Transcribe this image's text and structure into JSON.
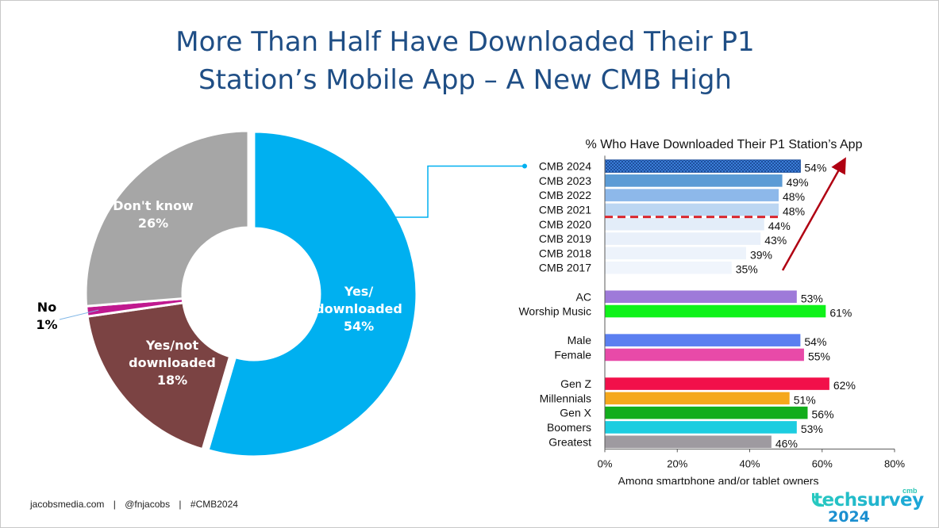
{
  "title_lines": [
    "More Than Half Have Downloaded Their P1",
    "Station’s Mobile App – A New CMB High"
  ],
  "footer": {
    "site": "jacobsmedia.com",
    "handle": "@fnjacobs",
    "hashtag": "#CMB2024",
    "separator": "|"
  },
  "brand": {
    "superscript": "cmb",
    "name": "techsurvey",
    "year": "2024"
  },
  "chart_data": [
    {
      "type": "pie",
      "variant": "donut",
      "slices": [
        {
          "label_lines": [
            "Yes/",
            "downloaded",
            "54%"
          ],
          "value": 54,
          "color": "#00b0f0",
          "label_color": "#ffffff"
        },
        {
          "label_lines": [
            "Yes/not",
            "downloaded",
            "18%"
          ],
          "value": 18,
          "color": "#7b4343",
          "label_color": "#ffffff"
        },
        {
          "label_lines": [
            "No",
            "1%"
          ],
          "value": 1,
          "color": "#c0198f",
          "label_color": "#000000"
        },
        {
          "label_lines": [
            "Don't know",
            "26%"
          ],
          "value": 26,
          "color": "#a6a6a6",
          "label_color": "#ffffff"
        }
      ]
    },
    {
      "type": "bar",
      "orientation": "horizontal",
      "title": "% Who Have Downloaded Their P1 Station’s App",
      "xlabel": "Among smartphone and/or tablet owners",
      "xlim": [
        0,
        80
      ],
      "xticks": [
        "0%",
        "20%",
        "40%",
        "60%",
        "80%"
      ],
      "groups": [
        {
          "bars": [
            {
              "label": "CMB 2024",
              "value": 54,
              "text": "54%",
              "color": "#2e6db4",
              "pattern": "checker"
            },
            {
              "label": "CMB 2023",
              "value": 49,
              "text": "49%",
              "color": "#5b9bd5"
            },
            {
              "label": "CMB 2022",
              "value": 48,
              "text": "48%",
              "color": "#8db8ea"
            },
            {
              "label": "CMB 2021",
              "value": 48,
              "text": "48%",
              "color": "#bcd6f2"
            },
            {
              "label": "CMB 2020",
              "value": 44,
              "text": "44%",
              "color": "#e3edf9"
            },
            {
              "label": "CMB 2019",
              "value": 43,
              "text": "43%",
              "color": "#e9f0fa"
            },
            {
              "label": "CMB 2018",
              "value": 39,
              "text": "39%",
              "color": "#edf3fb"
            },
            {
              "label": "CMB 2017",
              "value": 35,
              "text": "35%",
              "color": "#f0f5fc"
            }
          ]
        },
        {
          "bars": [
            {
              "label": "AC",
              "value": 53,
              "text": "53%",
              "color": "#9e7ad9"
            },
            {
              "label": "Worship Music",
              "value": 61,
              "text": "61%",
              "color": "#0ff21a"
            }
          ]
        },
        {
          "bars": [
            {
              "label": "Male",
              "value": 54,
              "text": "54%",
              "color": "#5b7ff0"
            },
            {
              "label": "Female",
              "value": 55,
              "text": "55%",
              "color": "#e84aa8"
            }
          ]
        },
        {
          "bars": [
            {
              "label": "Gen Z",
              "value": 62,
              "text": "62%",
              "color": "#f2104a"
            },
            {
              "label": "Millennials",
              "value": 51,
              "text": "51%",
              "color": "#f5a81c"
            },
            {
              "label": "Gen X",
              "value": 56,
              "text": "56%",
              "color": "#12ad1c"
            },
            {
              "label": "Boomers",
              "value": 53,
              "text": "53%",
              "color": "#1ccde0"
            },
            {
              "label": "Greatest",
              "value": 46,
              "text": "46%",
              "color": "#9e9aa0"
            }
          ]
        }
      ],
      "annotations": {
        "dashed_divider_color": "#d9262e",
        "trend_arrow_color": "#b00012"
      }
    }
  ]
}
